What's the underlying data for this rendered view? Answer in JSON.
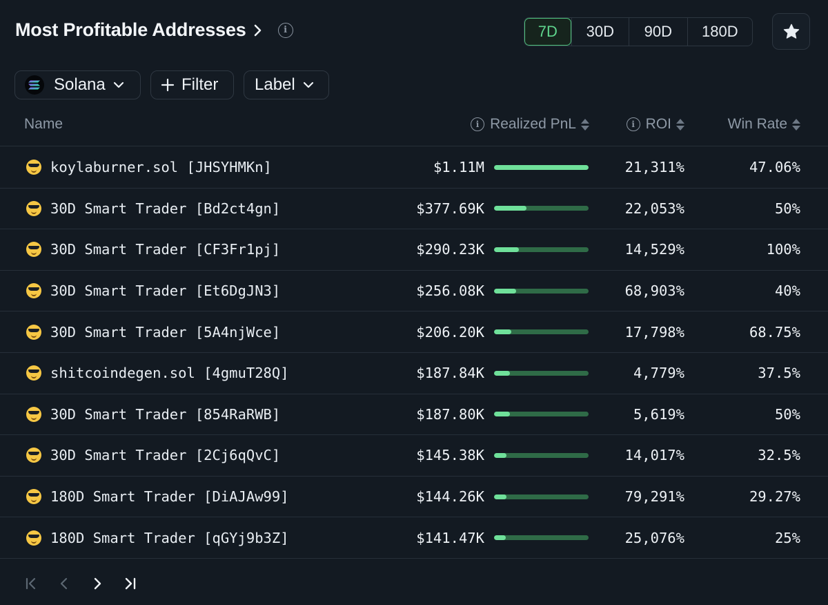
{
  "header": {
    "title": "Most Profitable Addresses",
    "periods": [
      "7D",
      "30D",
      "90D",
      "180D"
    ],
    "active_period": "7D"
  },
  "filters": {
    "chain": "Solana",
    "filter_label": "Filter",
    "label_label": "Label"
  },
  "table": {
    "columns": {
      "name": "Name",
      "pnl": "Realized PnL",
      "roi": "ROI",
      "win_rate": "Win Rate"
    },
    "rows": [
      {
        "name": "koylaburner.sol [JHSYHMKn]",
        "pnl": "$1.11M",
        "pnl_value": 1110000,
        "roi": "21,311%",
        "win_rate": "47.06%"
      },
      {
        "name": "30D Smart Trader [Bd2ct4gn]",
        "pnl": "$377.69K",
        "pnl_value": 377690,
        "roi": "22,053%",
        "win_rate": "50%"
      },
      {
        "name": "30D Smart Trader [CF3Fr1pj]",
        "pnl": "$290.23K",
        "pnl_value": 290230,
        "roi": "14,529%",
        "win_rate": "100%"
      },
      {
        "name": "30D Smart Trader [Et6DgJN3]",
        "pnl": "$256.08K",
        "pnl_value": 256080,
        "roi": "68,903%",
        "win_rate": "40%"
      },
      {
        "name": "30D Smart Trader [5A4njWce]",
        "pnl": "$206.20K",
        "pnl_value": 206200,
        "roi": "17,798%",
        "win_rate": "68.75%"
      },
      {
        "name": "shitcoindegen.sol [4gmuT28Q]",
        "pnl": "$187.84K",
        "pnl_value": 187840,
        "roi": "4,779%",
        "win_rate": "37.5%"
      },
      {
        "name": "30D Smart Trader [854RaRWB]",
        "pnl": "$187.80K",
        "pnl_value": 187800,
        "roi": "5,619%",
        "win_rate": "50%"
      },
      {
        "name": "30D Smart Trader [2Cj6qQvC]",
        "pnl": "$145.38K",
        "pnl_value": 145380,
        "roi": "14,017%",
        "win_rate": "32.5%"
      },
      {
        "name": "180D Smart Trader [DiAJAw99]",
        "pnl": "$144.26K",
        "pnl_value": 144260,
        "roi": "79,291%",
        "win_rate": "29.27%"
      },
      {
        "name": "180D Smart Trader [qGYj9b3Z]",
        "pnl": "$141.47K",
        "pnl_value": 141470,
        "roi": "25,076%",
        "win_rate": "25%"
      }
    ]
  },
  "icons": {
    "title_chevron": "chevron-right-icon",
    "info": "info-icon",
    "star": "star-icon",
    "chain_logo": "solana-logo-icon",
    "row_avatar": "sunglasses-emoji-icon",
    "pager": [
      "first-page-icon",
      "prev-page-icon",
      "next-page-icon",
      "last-page-icon"
    ]
  },
  "colors": {
    "background": "#131a22",
    "accent": "#5fd58d",
    "bar_fill": "#6fe09a",
    "bar_track": "#2f6b47"
  }
}
